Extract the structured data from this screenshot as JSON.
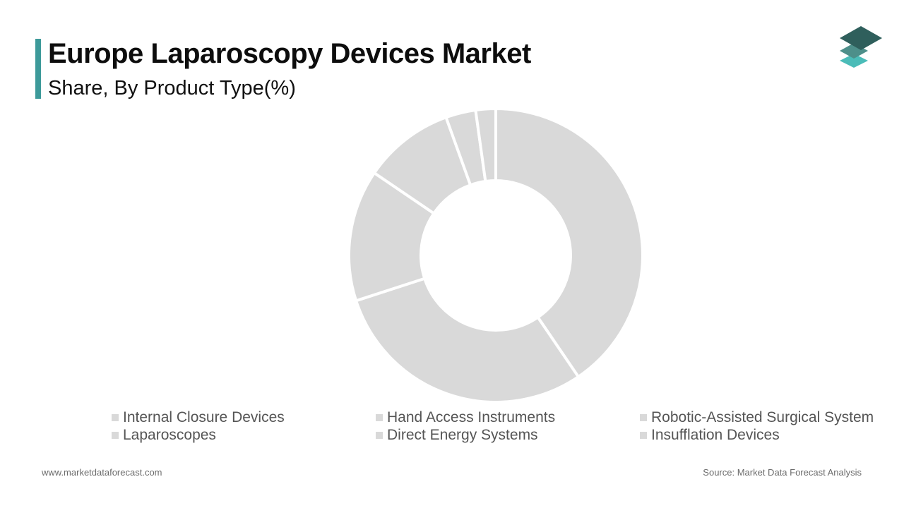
{
  "header": {
    "title": "Europe Laparoscopy Devices Market",
    "subtitle": "Share, By Product Type(%)"
  },
  "logo": {
    "icon": "stacked-layers-icon",
    "colors": [
      "#2f5f5c",
      "#4d8f8a",
      "#4bbcb8"
    ]
  },
  "chart_data": {
    "type": "pie",
    "style": "donut",
    "title": "Europe Laparoscopy Devices Market",
    "subtitle": "Share, By Product Type(%)",
    "legend_position": "bottom",
    "slice_color": "#d9d9d9",
    "categories": [
      "Internal Closure Devices",
      "Hand Access Instruments",
      "Robotic-Assisted Surgical System",
      "Laparoscopes",
      "Direct Energy Systems",
      "Insufflation Devices"
    ],
    "values": [
      40.5,
      29.5,
      14.5,
      10.0,
      3.3,
      2.2
    ]
  },
  "footer": {
    "website": "www.marketdataforecast.com",
    "source": "Source: Market Data Forecast Analysis"
  }
}
